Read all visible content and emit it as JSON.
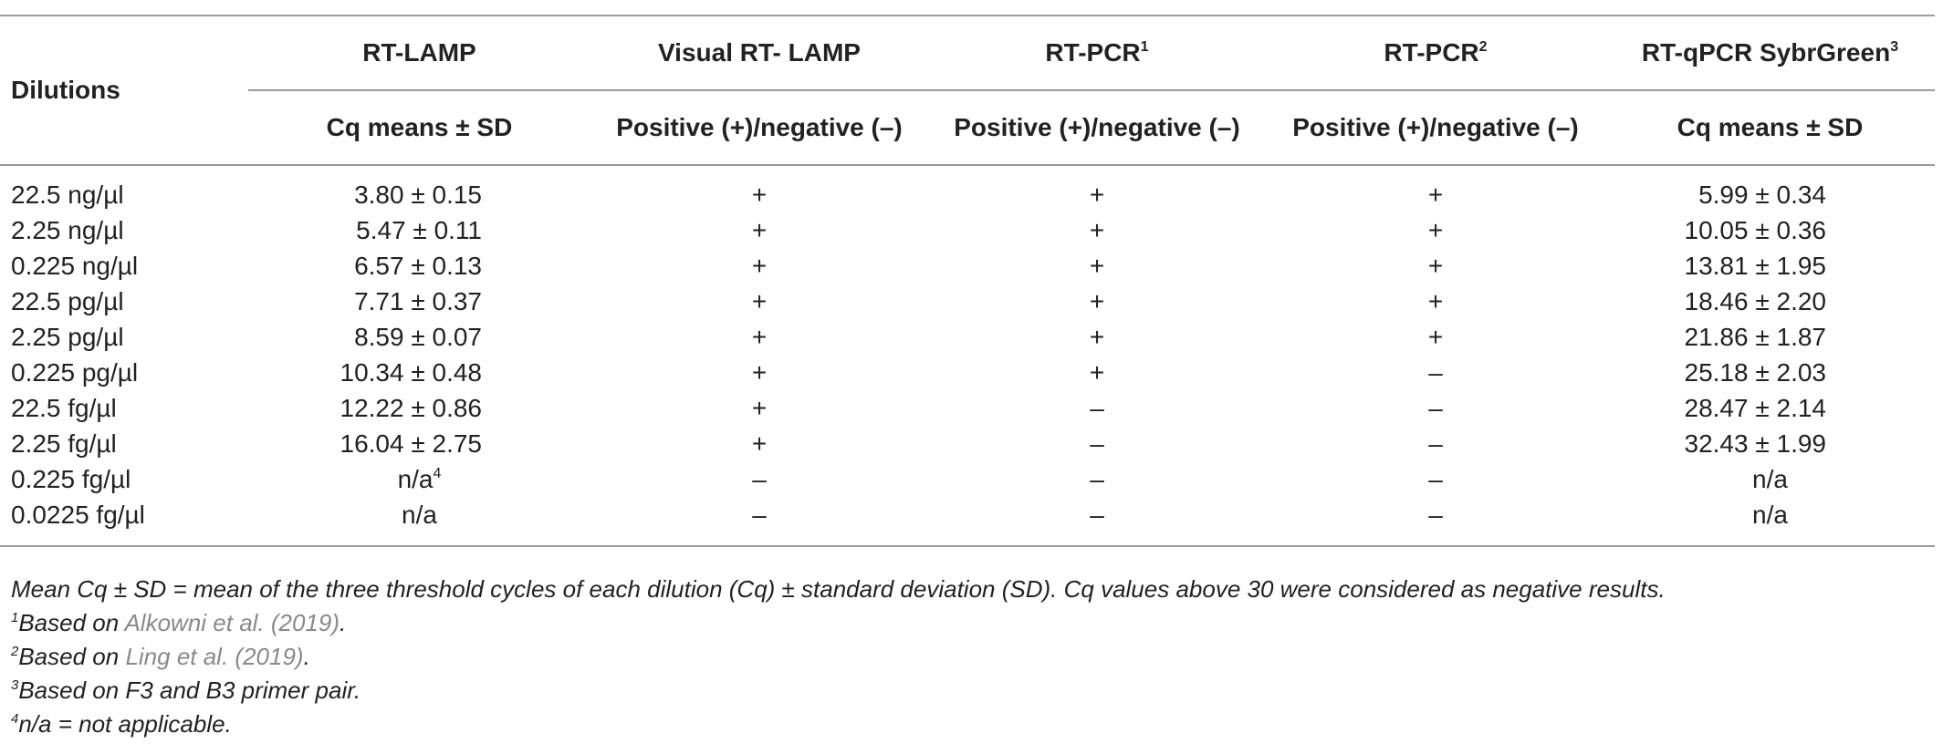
{
  "table": {
    "header_dilutions": "Dilutions",
    "columns": [
      {
        "title": "RT-LAMP",
        "sup": "",
        "sub": "Cq means ± SD"
      },
      {
        "title": "Visual RT- LAMP",
        "sup": "",
        "sub": "Positive (+)/negative (–)"
      },
      {
        "title": "RT-PCR",
        "sup": "1",
        "sub": "Positive (+)/negative (–)"
      },
      {
        "title": "RT-PCR",
        "sup": "2",
        "sub": "Positive (+)/negative (–)"
      },
      {
        "title": "RT-qPCR SybrGreen",
        "sup": "3",
        "sub": "Cq means ± SD"
      }
    ],
    "rows": [
      {
        "dilution": "22.5 ng/µl",
        "rt_lamp": "3.80 ± 0.15",
        "visual": "+",
        "pcr1": "+",
        "pcr2": "+",
        "qpcr": "5.99 ± 0.34"
      },
      {
        "dilution": "2.25 ng/µl",
        "rt_lamp": "5.47 ± 0.11",
        "visual": "+",
        "pcr1": "+",
        "pcr2": "+",
        "qpcr": "10.05 ± 0.36"
      },
      {
        "dilution": "0.225 ng/µl",
        "rt_lamp": "6.57 ± 0.13",
        "visual": "+",
        "pcr1": "+",
        "pcr2": "+",
        "qpcr": "13.81 ± 1.95"
      },
      {
        "dilution": "22.5 pg/µl",
        "rt_lamp": "7.71 ± 0.37",
        "visual": "+",
        "pcr1": "+",
        "pcr2": "+",
        "qpcr": "18.46 ± 2.20"
      },
      {
        "dilution": "2.25 pg/µl",
        "rt_lamp": "8.59 ± 0.07",
        "visual": "+",
        "pcr1": "+",
        "pcr2": "+",
        "qpcr": "21.86 ± 1.87"
      },
      {
        "dilution": "0.225 pg/µl",
        "rt_lamp": "10.34 ± 0.48",
        "visual": "+",
        "pcr1": "+",
        "pcr2": "–",
        "qpcr": "25.18 ± 2.03"
      },
      {
        "dilution": "22.5 fg/µl",
        "rt_lamp": "12.22 ± 0.86",
        "visual": "+",
        "pcr1": "–",
        "pcr2": "–",
        "qpcr": "28.47 ± 2.14"
      },
      {
        "dilution": "2.25 fg/µl",
        "rt_lamp": "16.04 ± 2.75",
        "visual": "+",
        "pcr1": "–",
        "pcr2": "–",
        "qpcr": "32.43 ± 1.99"
      },
      {
        "dilution": "0.225 fg/µl",
        "rt_lamp": "n/a",
        "rt_lamp_sup": "4",
        "visual": "–",
        "pcr1": "–",
        "pcr2": "–",
        "qpcr": "n/a"
      },
      {
        "dilution": "0.0225 fg/µl",
        "rt_lamp": "n/a",
        "visual": "–",
        "pcr1": "–",
        "pcr2": "–",
        "qpcr": "n/a"
      }
    ]
  },
  "footnotes": {
    "main": "Mean Cq ± SD = mean of the three threshold cycles of each dilution (Cq) ± standard deviation (SD). Cq values above 30 were considered as negative results.",
    "f1_sup": "1",
    "f1_pre": "Based on ",
    "f1_cite": "Alkowni et al. (2019)",
    "f1_post": ".",
    "f2_sup": "2",
    "f2_pre": "Based on ",
    "f2_cite": "Ling et al. (2019)",
    "f2_post": ".",
    "f3_sup": "3",
    "f3_text": "Based on F3 and B3 primer pair.",
    "f4_sup": "4",
    "f4_text": "n/a = not applicable.",
    "cite_color": "#8a8a8a"
  }
}
